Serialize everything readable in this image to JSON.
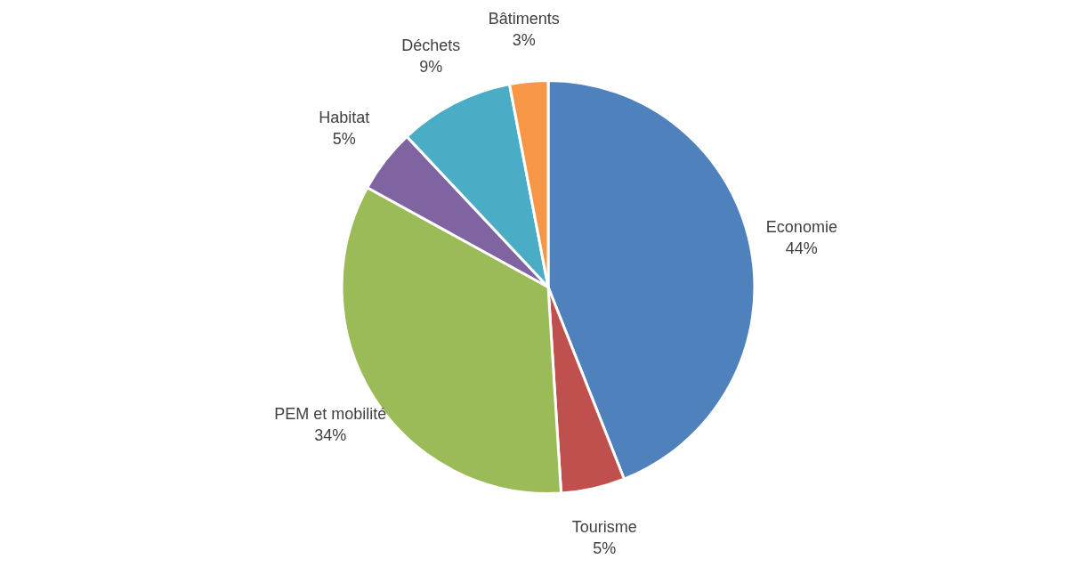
{
  "chart_data": {
    "type": "pie",
    "categories": [
      "Economie",
      "Tourisme",
      "PEM et mobilité",
      "Habitat",
      "Déchets",
      "Bâtiments"
    ],
    "values": [
      44,
      5,
      34,
      5,
      9,
      3
    ],
    "colors": [
      "#4f81bd",
      "#c0504d",
      "#9bbb59",
      "#8064a2",
      "#4bacc6",
      "#f79646"
    ],
    "value_labels": [
      "44%",
      "5%",
      "34%",
      "5%",
      "9%",
      "3%"
    ],
    "legend": false
  }
}
